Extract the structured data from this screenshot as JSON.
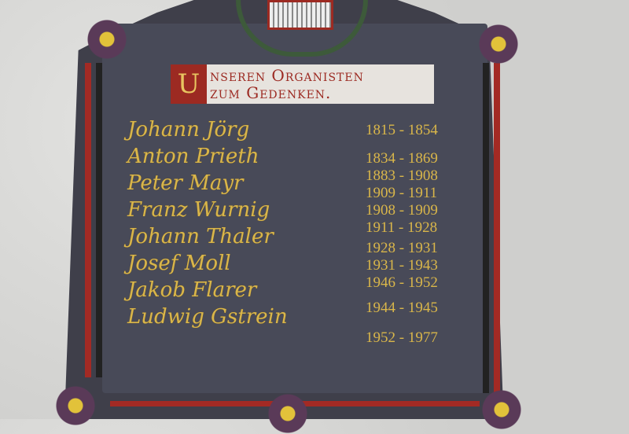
{
  "plaque": {
    "header_initial": "U",
    "header_line1": "nseren Organisten",
    "header_line2": "zum Gedenken.",
    "names": [
      "Johann Jörg",
      "Anton Prieth",
      "Peter Mayr",
      "Franz Wurnig",
      "Johann Thaler",
      "Josef Moll",
      "Jakob Flarer",
      "Ludwig Gstrein"
    ],
    "dates": [
      "1815 - 1854",
      "1834 - 1869",
      "1883 - 1908",
      "1909 - 1911",
      "1908 - 1909",
      "1911 - 1928",
      "1928 - 1931",
      "1931 - 1943",
      "1946 - 1952",
      "1944 - 1945",
      "1952 - 1977"
    ]
  },
  "colors": {
    "plaque": "#3f3f4a",
    "gold": "#d9b64a",
    "red": "#9c2a22",
    "wall": "#d6d6d4"
  }
}
